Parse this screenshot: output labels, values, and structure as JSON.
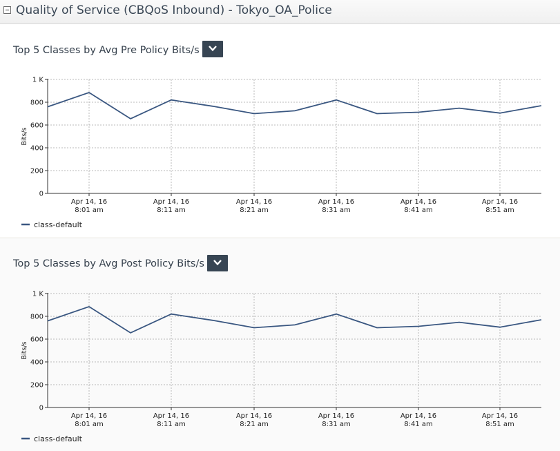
{
  "header": {
    "title": "Quality of Service (CBQoS Inbound) - Tokyo_OA_Police"
  },
  "colors": {
    "series": "#3a5781",
    "grid": "#b8b8b8",
    "menu_button": "#374553"
  },
  "icons": {
    "collapse": "minus-box-icon",
    "menu": "chevron-down-icon"
  },
  "chart_data": [
    {
      "type": "line",
      "title": "Top 5 Classes by Avg Pre Policy Bits/s",
      "xlabel": "",
      "ylabel": "Bits/s",
      "ylim": [
        0,
        1000
      ],
      "yticks": [
        "0",
        "200",
        "400",
        "600",
        "800",
        "1 K"
      ],
      "ytick_values": [
        0,
        200,
        400,
        600,
        800,
        1000
      ],
      "xticks": [
        {
          "line1": "Apr 14, 16",
          "line2": "8:01 am"
        },
        {
          "line1": "Apr 14, 16",
          "line2": "8:11 am"
        },
        {
          "line1": "Apr 14, 16",
          "line2": "8:21 am"
        },
        {
          "line1": "Apr 14, 16",
          "line2": "8:31 am"
        },
        {
          "line1": "Apr 14, 16",
          "line2": "8:41 am"
        },
        {
          "line1": "Apr 14, 16",
          "line2": "8:51 am"
        }
      ],
      "x": [
        "7:56 am",
        "8:01 am",
        "8:06 am",
        "8:11 am",
        "8:16 am",
        "8:21 am",
        "8:26 am",
        "8:31 am",
        "8:36 am",
        "8:41 am",
        "8:46 am",
        "8:51 am",
        "8:56 am"
      ],
      "grid": true,
      "legend": "bottom-left",
      "series": [
        {
          "name": "class-default",
          "values": [
            760,
            885,
            655,
            820,
            765,
            700,
            725,
            820,
            700,
            712,
            748,
            705,
            770
          ]
        }
      ]
    },
    {
      "type": "line",
      "title": "Top 5 Classes by Avg Post Policy Bits/s",
      "xlabel": "",
      "ylabel": "Bits/s",
      "ylim": [
        0,
        1000
      ],
      "yticks": [
        "0",
        "200",
        "400",
        "600",
        "800",
        "1 K"
      ],
      "ytick_values": [
        0,
        200,
        400,
        600,
        800,
        1000
      ],
      "xticks": [
        {
          "line1": "Apr 14, 16",
          "line2": "8:01 am"
        },
        {
          "line1": "Apr 14, 16",
          "line2": "8:11 am"
        },
        {
          "line1": "Apr 14, 16",
          "line2": "8:21 am"
        },
        {
          "line1": "Apr 14, 16",
          "line2": "8:31 am"
        },
        {
          "line1": "Apr 14, 16",
          "line2": "8:41 am"
        },
        {
          "line1": "Apr 14, 16",
          "line2": "8:51 am"
        }
      ],
      "x": [
        "7:56 am",
        "8:01 am",
        "8:06 am",
        "8:11 am",
        "8:16 am",
        "8:21 am",
        "8:26 am",
        "8:31 am",
        "8:36 am",
        "8:41 am",
        "8:46 am",
        "8:51 am",
        "8:56 am"
      ],
      "grid": true,
      "legend": "bottom-left",
      "series": [
        {
          "name": "class-default",
          "values": [
            760,
            885,
            655,
            820,
            765,
            700,
            725,
            820,
            700,
            712,
            748,
            705,
            770
          ]
        }
      ]
    }
  ]
}
